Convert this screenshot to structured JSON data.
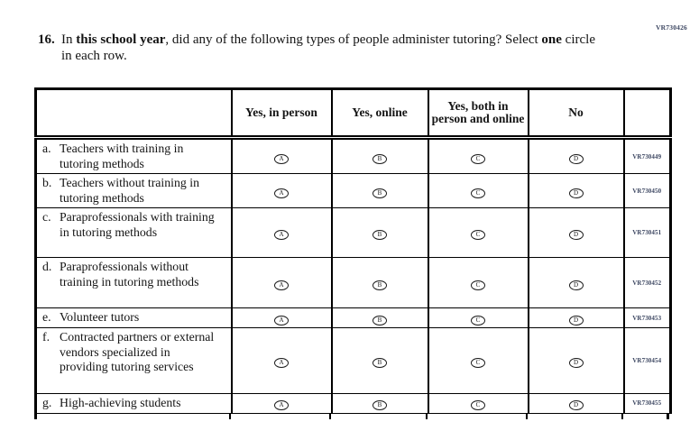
{
  "page": {
    "code_top_right": "VR730426"
  },
  "question": {
    "number": "16.",
    "segments": [
      {
        "text": "In ",
        "bold": false
      },
      {
        "text": "this school year",
        "bold": true
      },
      {
        "text": ", did any of the following types of people administer tutoring? Select ",
        "bold": false
      },
      {
        "text": "one",
        "bold": true
      },
      {
        "text": " circle in each row.",
        "bold": false
      }
    ]
  },
  "table": {
    "columns": [
      "Yes, in person",
      "Yes, online",
      "Yes, both in person and online",
      "No"
    ],
    "rows": [
      {
        "letter": "a.",
        "label": "Teachers with training in tutoring methods",
        "options": [
          "A",
          "B",
          "C",
          "D"
        ],
        "code": "VR730449"
      },
      {
        "letter": "b.",
        "label": "Teachers without training in tutoring methods",
        "options": [
          "A",
          "B",
          "C",
          "D"
        ],
        "code": "VR730450"
      },
      {
        "letter": "c.",
        "label": "Paraprofessionals with training in tutoring methods",
        "options": [
          "A",
          "B",
          "C",
          "D"
        ],
        "code": "VR730451"
      },
      {
        "letter": "d.",
        "label": "Paraprofessionals without training in tutoring methods",
        "options": [
          "A",
          "B",
          "C",
          "D"
        ],
        "code": "VR730452"
      },
      {
        "letter": "e.",
        "label": "Volunteer tutors",
        "options": [
          "A",
          "B",
          "C",
          "D"
        ],
        "code": "VR730453"
      },
      {
        "letter": "f.",
        "label": "Contracted partners or external vendors specialized in providing tutoring services",
        "options": [
          "A",
          "B",
          "C",
          "D"
        ],
        "code": "VR730454"
      },
      {
        "letter": "g.",
        "label": "High-achieving students",
        "options": [
          "A",
          "B",
          "C",
          "D"
        ],
        "code": "VR730455"
      }
    ]
  },
  "colors": {
    "ink": "#141414",
    "grid_line": "#000000",
    "vr_code": "#3b4560",
    "background": "#ffffff"
  }
}
